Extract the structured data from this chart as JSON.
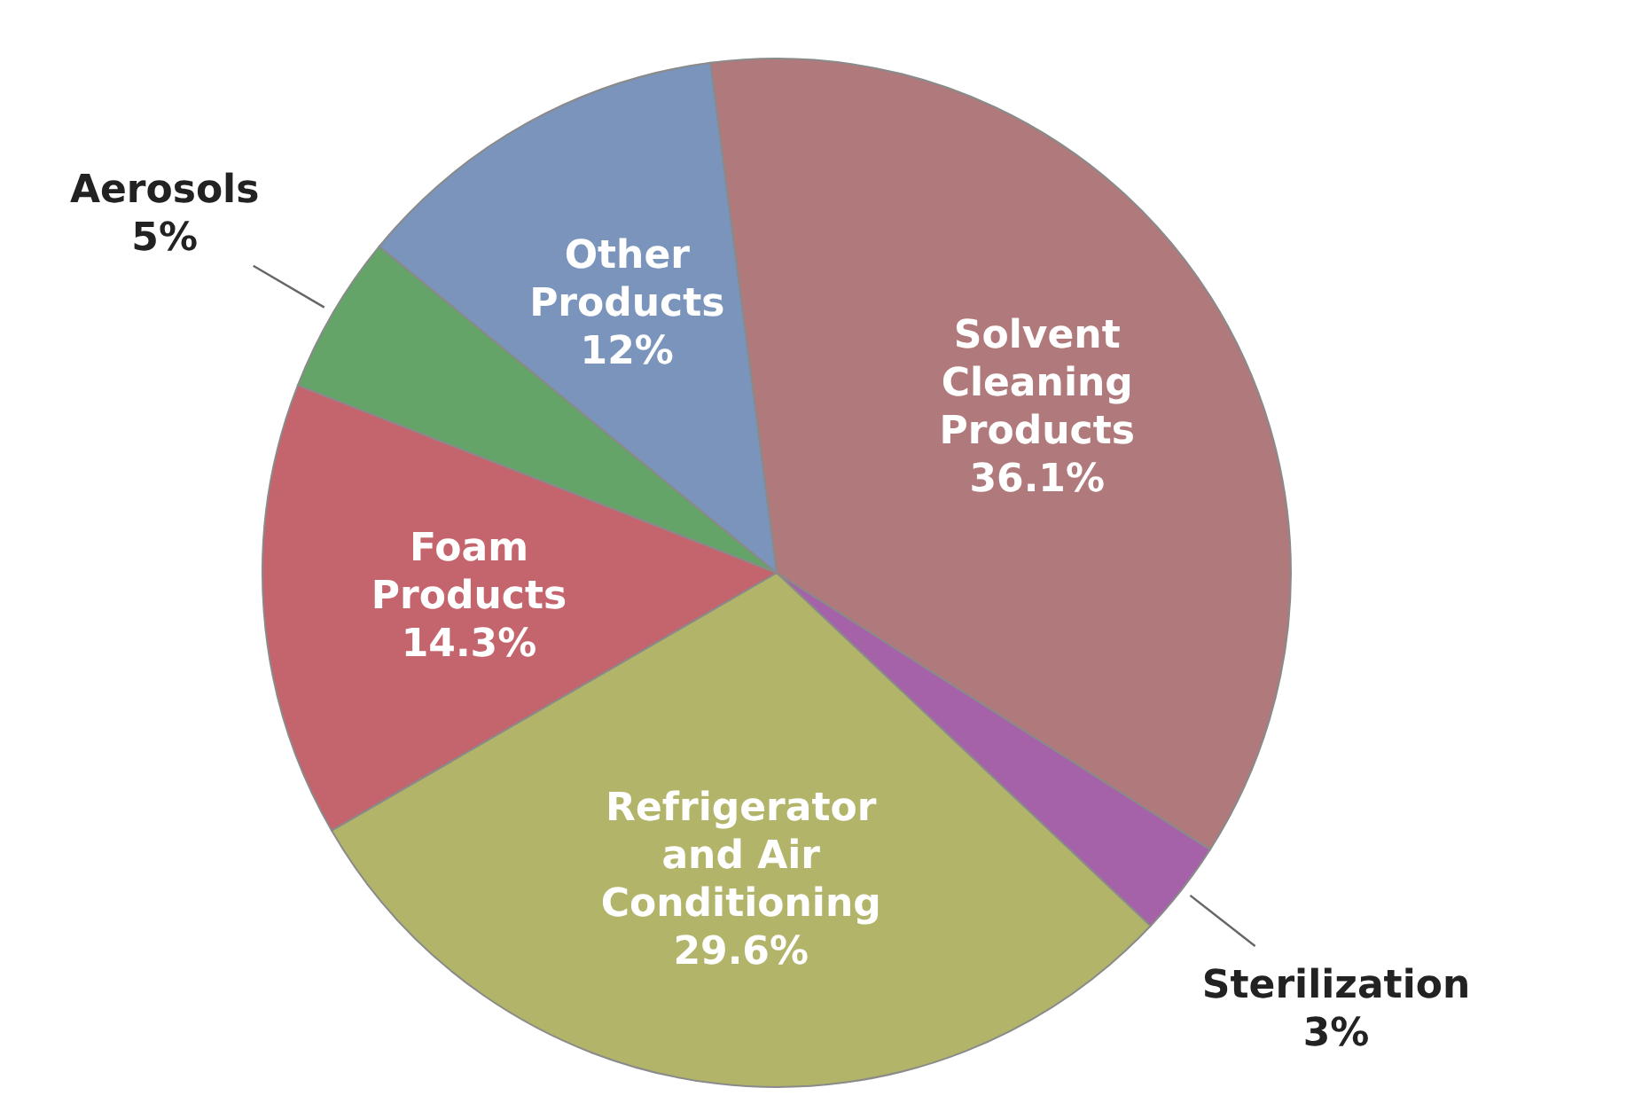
{
  "chart_data": {
    "type": "pie",
    "categories": [
      "Solvent Cleaning Products",
      "Sterilization",
      "Refrigerator and Air Conditioning",
      "Foam Products",
      "Aerosols",
      "Other Products"
    ],
    "values": [
      36.1,
      3,
      29.6,
      14.3,
      5,
      12
    ],
    "value_labels": [
      "36.1%",
      "3%",
      "29.6%",
      "14.3%",
      "5%",
      "12%"
    ],
    "colors": [
      "#b07a7c",
      "#a662a8",
      "#b2b46a",
      "#c4646c",
      "#64a468",
      "#7a94bc"
    ],
    "legend": false
  }
}
